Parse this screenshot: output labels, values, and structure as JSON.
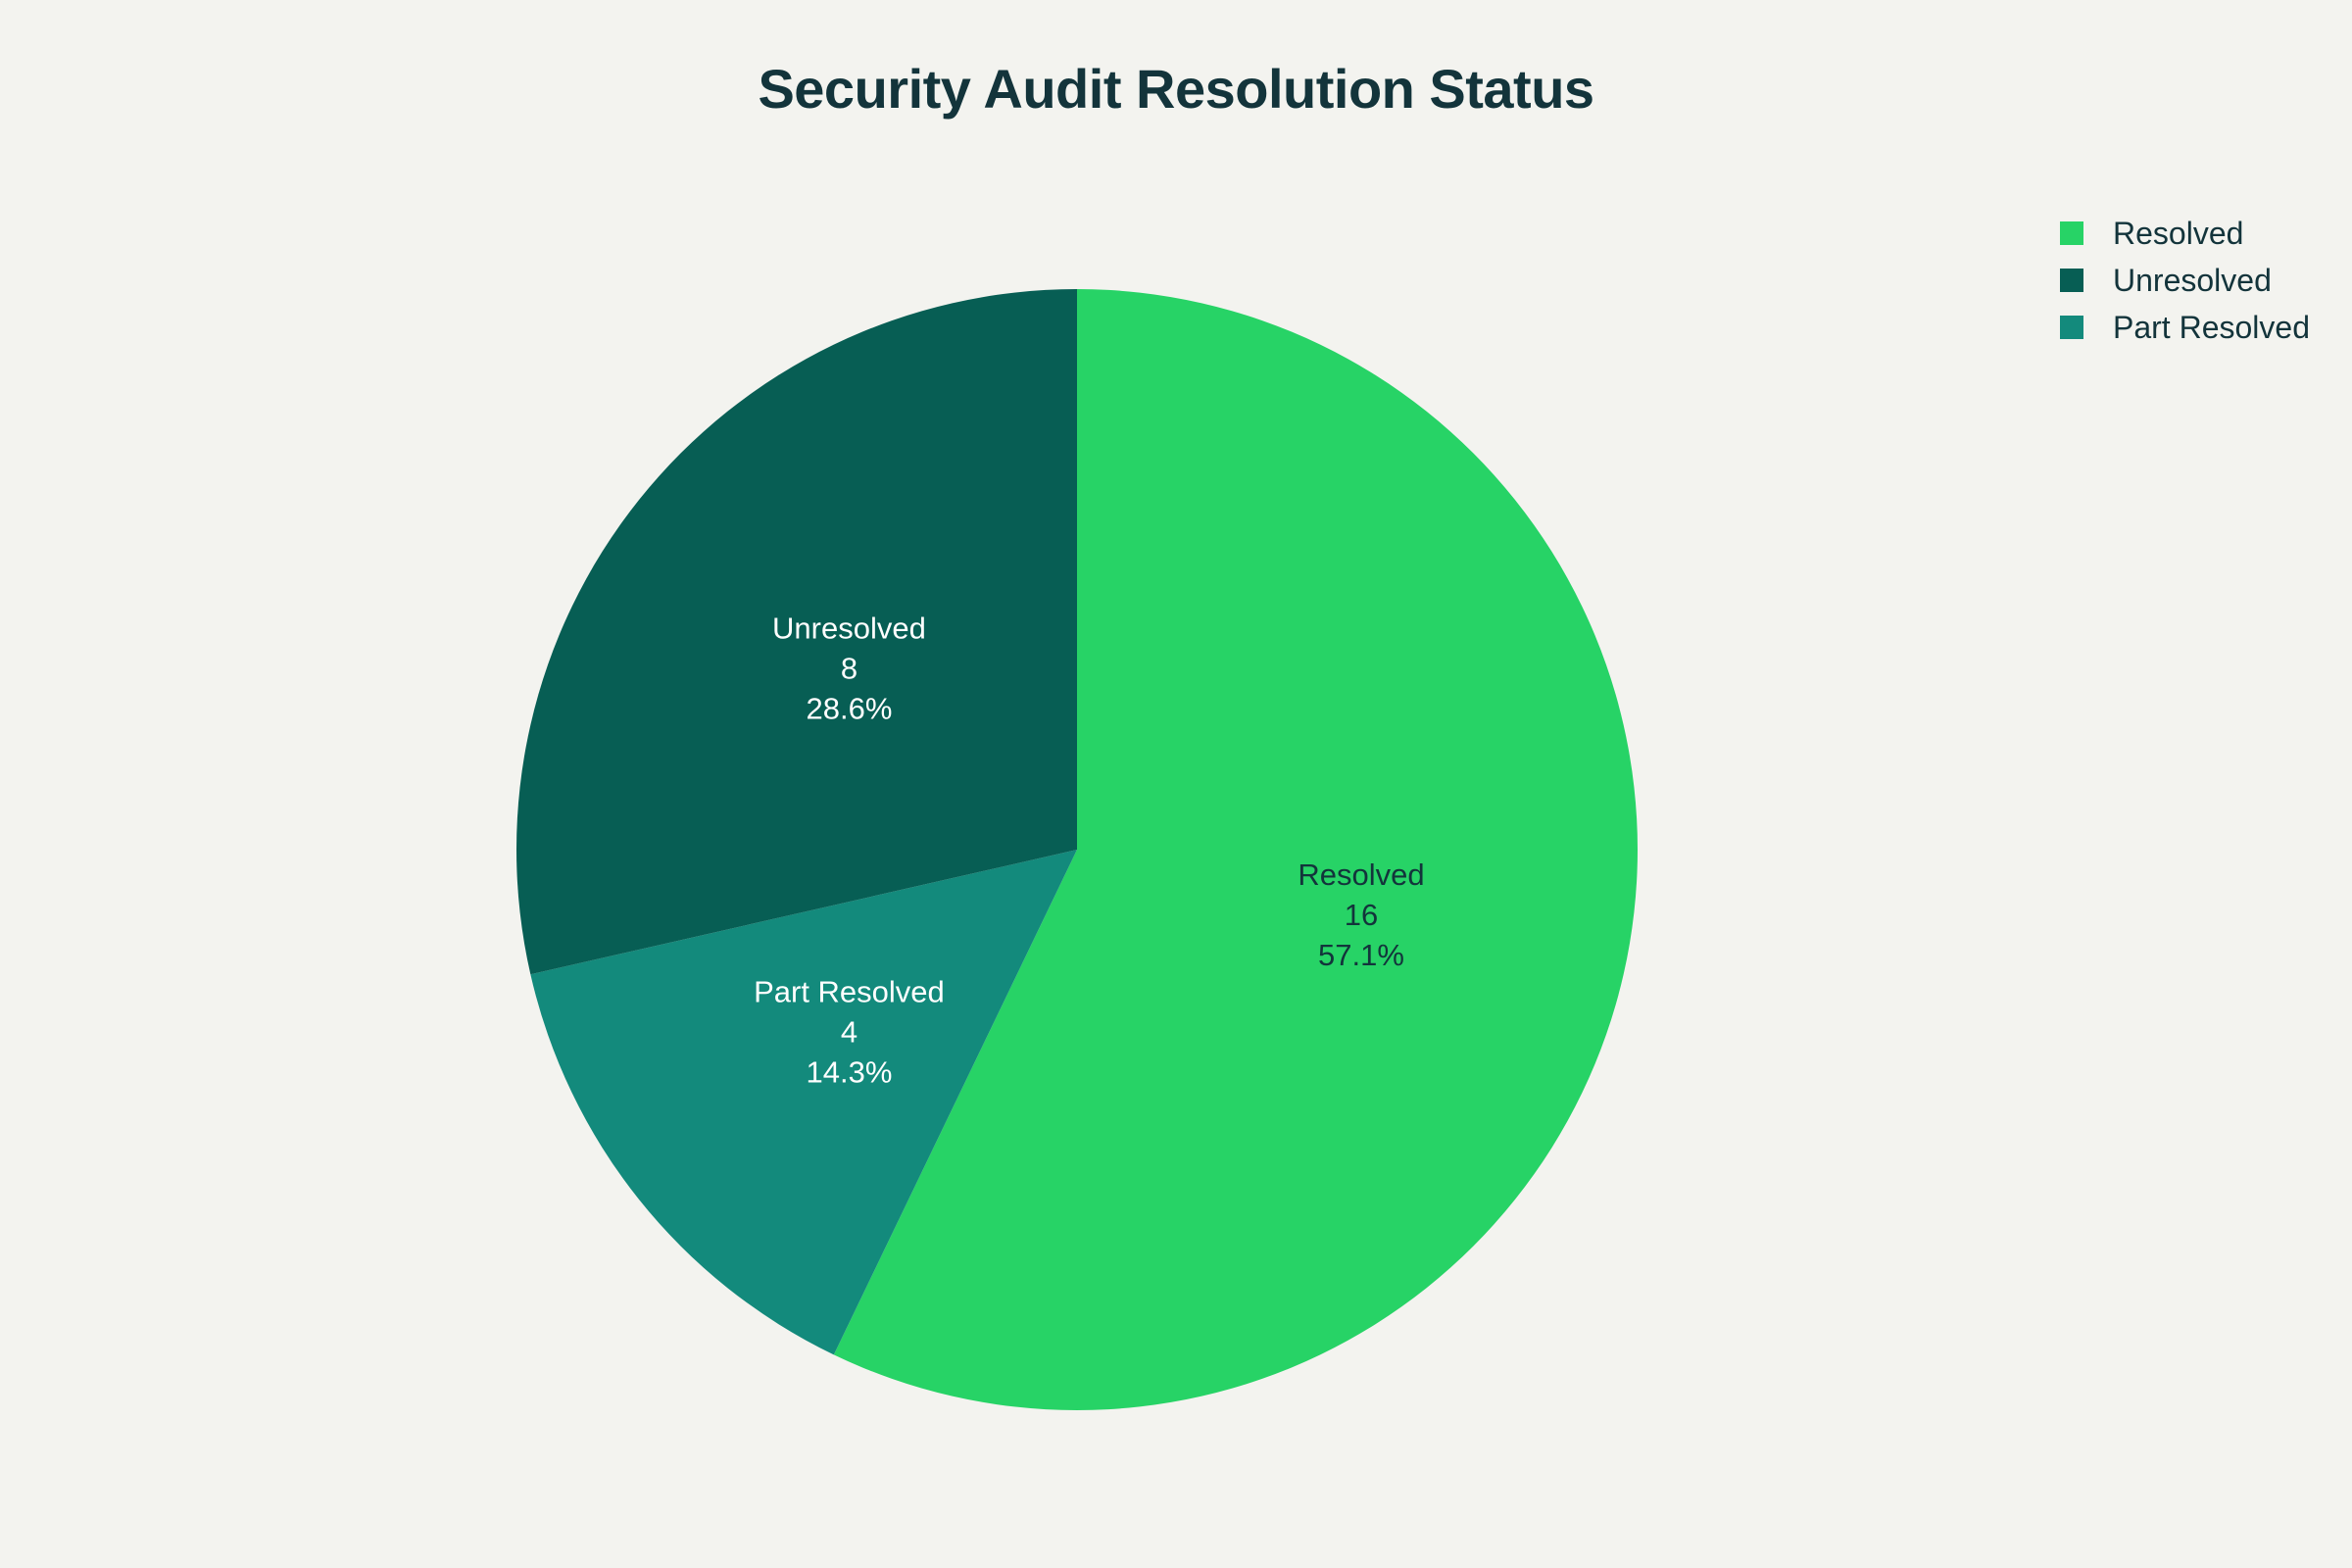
{
  "chart_data": {
    "type": "pie",
    "title": "Security Audit Resolution Status",
    "categories": [
      "Resolved",
      "Unresolved",
      "Part Resolved"
    ],
    "values": [
      16,
      8,
      4
    ],
    "percent_labels": [
      "57.1%",
      "28.6%",
      "14.3%"
    ],
    "colors": [
      "#27d366",
      "#075e54",
      "#138a7c"
    ],
    "label_colors": [
      "#13343b",
      "#ffffff",
      "#ffffff"
    ],
    "legend_position": "top-right",
    "start_angle": "12 o'clock",
    "direction": "clockwise"
  },
  "legend": {
    "items": [
      {
        "label": "Resolved",
        "color": "#27d366"
      },
      {
        "label": "Unresolved",
        "color": "#075e54"
      },
      {
        "label": "Part Resolved",
        "color": "#138a7c"
      }
    ]
  }
}
